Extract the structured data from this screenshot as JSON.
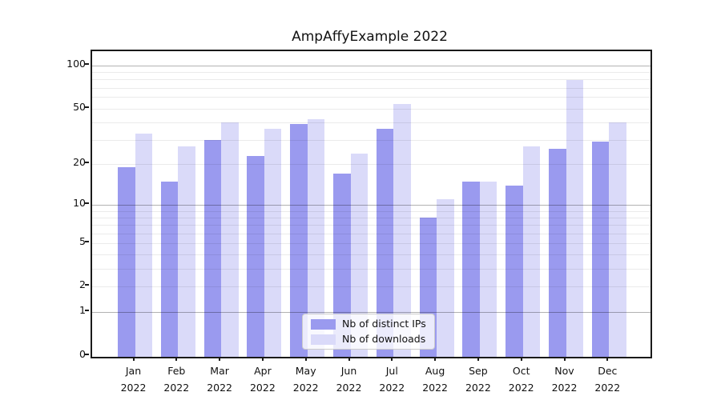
{
  "title": "AmpAffyExample 2022",
  "chart_data": {
    "type": "bar",
    "title": "AmpAffyExample 2022",
    "categories": [
      "Jan",
      "Feb",
      "Mar",
      "Apr",
      "May",
      "Jun",
      "Jul",
      "Aug",
      "Sep",
      "Oct",
      "Nov",
      "Dec"
    ],
    "year_label": "2022",
    "series": [
      {
        "name": "Nb of distinct IPs",
        "color": "#9a9aef",
        "values": [
          19,
          15,
          30,
          23,
          39,
          17,
          36,
          8,
          15,
          14,
          26,
          29
        ]
      },
      {
        "name": "Nb of downloads",
        "color": "#dadaf9",
        "values": [
          33,
          27,
          40,
          36,
          42,
          24,
          54,
          11,
          15,
          27,
          79,
          40
        ]
      }
    ],
    "xlabel": "",
    "ylabel": "",
    "yscale": "log1p",
    "ylim": [
      0,
      126
    ],
    "y_tick_labels": [
      "0",
      "1",
      "2",
      "5",
      "10",
      "20",
      "50",
      "100"
    ],
    "y_major_gridlines": [
      1,
      10,
      100
    ],
    "y_minor_gridlines": [
      2,
      3,
      4,
      5,
      6,
      7,
      8,
      9,
      20,
      30,
      40,
      50,
      60,
      70,
      80,
      90
    ],
    "grid": true,
    "legend_position": "lower center"
  },
  "legend": {
    "items": [
      {
        "label": "Nb of distinct IPs",
        "color": "#9a9aef"
      },
      {
        "label": "Nb of downloads",
        "color": "#dadaf9"
      }
    ]
  },
  "colors": {
    "background": "#ffffff",
    "axis": "#1a1a1a",
    "bar_dark": "#9a9aef",
    "bar_light": "#dadaf9"
  }
}
